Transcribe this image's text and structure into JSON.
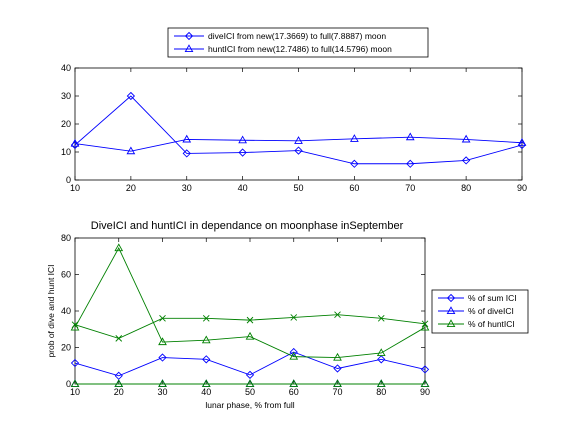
{
  "chart_data": [
    {
      "type": "line",
      "title": "",
      "xlabel": "",
      "ylabel": "",
      "x": [
        10,
        20,
        30,
        40,
        50,
        60,
        70,
        80,
        90
      ],
      "xlim": [
        10,
        90
      ],
      "ylim": [
        0,
        40
      ],
      "xticks": [
        10,
        20,
        30,
        40,
        50,
        60,
        70,
        80,
        90
      ],
      "yticks": [
        0,
        10,
        20,
        30,
        40
      ],
      "grid": false,
      "legend_position": "top-center-outside",
      "series": [
        {
          "name": "diveICI from new(17.3669) to full(7.8887) moon",
          "marker": "diamond",
          "color": "#0000ff",
          "values": [
            12.5,
            30,
            9.5,
            9.8,
            10.5,
            5.8,
            5.8,
            7,
            12.5
          ]
        },
        {
          "name": "huntICI from new(12.7486) to full(14.5796) moon",
          "marker": "triangle",
          "color": "#0000ff",
          "values": [
            13,
            10.3,
            14.5,
            14.2,
            14,
            14.7,
            15.3,
            14.5,
            13.3
          ]
        }
      ]
    },
    {
      "type": "line",
      "title": "DiveICI and huntICI in dependance on moonphase inSeptember",
      "xlabel": "lunar phase, % from full",
      "ylabel": "prob of dive and hunt ICI",
      "x": [
        10,
        20,
        30,
        40,
        50,
        60,
        70,
        80,
        90
      ],
      "xlim": [
        10,
        90
      ],
      "ylim": [
        0,
        80
      ],
      "xticks": [
        10,
        20,
        30,
        40,
        50,
        60,
        70,
        80,
        90
      ],
      "yticks": [
        0,
        20,
        40,
        60,
        80
      ],
      "grid": false,
      "legend_position": "right-outside",
      "series": [
        {
          "name": "% of sum ICI",
          "marker": "diamond",
          "color": "#0000ff",
          "values": [
            11.5,
            4.5,
            14.5,
            13.5,
            5,
            17.5,
            8.5,
            13.5,
            8
          ]
        },
        {
          "name": "% of diveICI",
          "marker": "triangle",
          "color": "#0000ff",
          "values": [
            0,
            0,
            0,
            0,
            0,
            0,
            0,
            0,
            0
          ]
        },
        {
          "name": "% of huntICI",
          "marker": "triangle",
          "color": "#008000",
          "values": [
            31,
            74.5,
            23,
            24,
            26,
            15,
            14.5,
            17,
            31
          ]
        },
        {
          "name": "",
          "marker": "x",
          "color": "#008000",
          "values": [
            32.5,
            25,
            36,
            36,
            35,
            36.5,
            38,
            36,
            33
          ]
        },
        {
          "name": "",
          "marker": "triangle",
          "color": "#008000",
          "values": [
            0,
            0,
            0,
            0,
            0,
            0,
            0,
            0,
            0
          ]
        }
      ]
    }
  ]
}
